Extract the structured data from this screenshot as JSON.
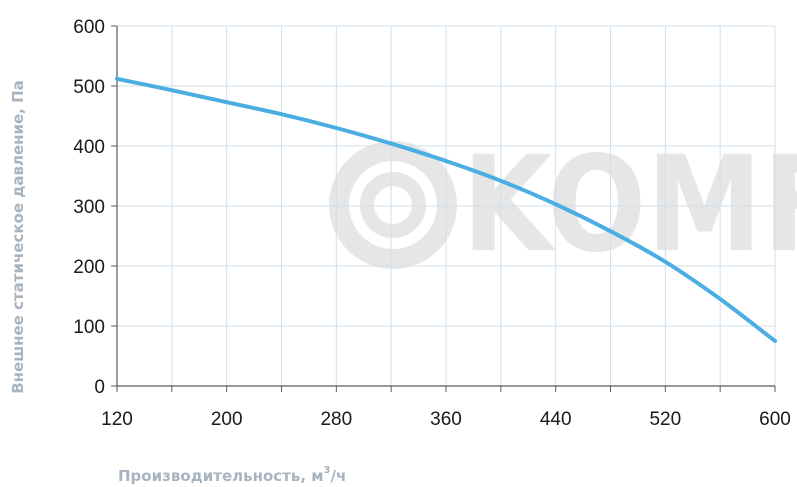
{
  "colors": {
    "curve": "#4aaee3",
    "grid": "#cfe0ee",
    "axis": "#5a5a5a",
    "axis_title": "#a7b4bf",
    "watermark": "#e6e6e6"
  },
  "watermark_text": "KOMF",
  "chart_data": {
    "type": "line",
    "title": "",
    "xlabel": "Производительность, м",
    "xlabel_sup": "3",
    "xlabel_tail": "/ч",
    "ylabel": "Внешнее статическое давление, Па",
    "xlim": [
      120,
      600
    ],
    "ylim": [
      0,
      600
    ],
    "x_ticks": [
      120,
      200,
      280,
      360,
      440,
      520,
      600
    ],
    "y_ticks": [
      0,
      100,
      200,
      300,
      400,
      500,
      600
    ],
    "x_minor_step": 40,
    "grid": true,
    "series": [
      {
        "x": [
          120,
          160,
          200,
          240,
          280,
          320,
          360,
          400,
          440,
          480,
          520,
          560,
          600
        ],
        "y": [
          512,
          493,
          473,
          453,
          430,
          404,
          375,
          342,
          303,
          258,
          207,
          145,
          75
        ]
      }
    ]
  }
}
